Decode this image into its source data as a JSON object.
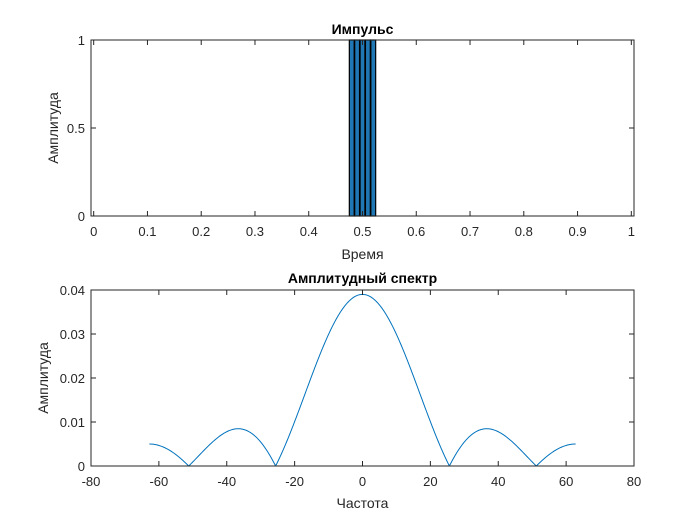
{
  "chart_data": [
    {
      "type": "bar",
      "title": "Импульс",
      "xlabel": "Время",
      "ylabel": "Амплитуда",
      "xlim": [
        -0.005,
        1.005
      ],
      "ylim": [
        0,
        1
      ],
      "xticks": [
        "0",
        "0.1",
        "0.2",
        "0.3",
        "0.4",
        "0.5",
        "0.6",
        "0.7",
        "0.8",
        "0.9",
        "1"
      ],
      "yticks": [
        "0",
        "0.5",
        "1"
      ],
      "bar_width": 0.009,
      "x": [
        0.48,
        0.49,
        0.5,
        0.51,
        0.52
      ],
      "values": [
        1,
        1,
        1,
        1,
        1
      ],
      "grid": false,
      "bar_color": "#1f77b4",
      "edge_color": "#000000"
    },
    {
      "type": "line",
      "title": "Амплитудный спектр",
      "xlabel": "Частота",
      "ylabel": "Амплитуда",
      "xlim": [
        -80,
        80
      ],
      "ylim": [
        0,
        0.04
      ],
      "xticks": [
        "-80",
        "-60",
        "-40",
        "-20",
        "0",
        "20",
        "40",
        "60",
        "80"
      ],
      "yticks": [
        "0",
        "0.01",
        "0.02",
        "0.03",
        "0.04"
      ],
      "x_range": [
        -62.8,
        62.8
      ],
      "peak": 0.039,
      "null_spacing": 25.6,
      "samples": 400,
      "grid": false,
      "line_color": "#0072bd"
    }
  ]
}
